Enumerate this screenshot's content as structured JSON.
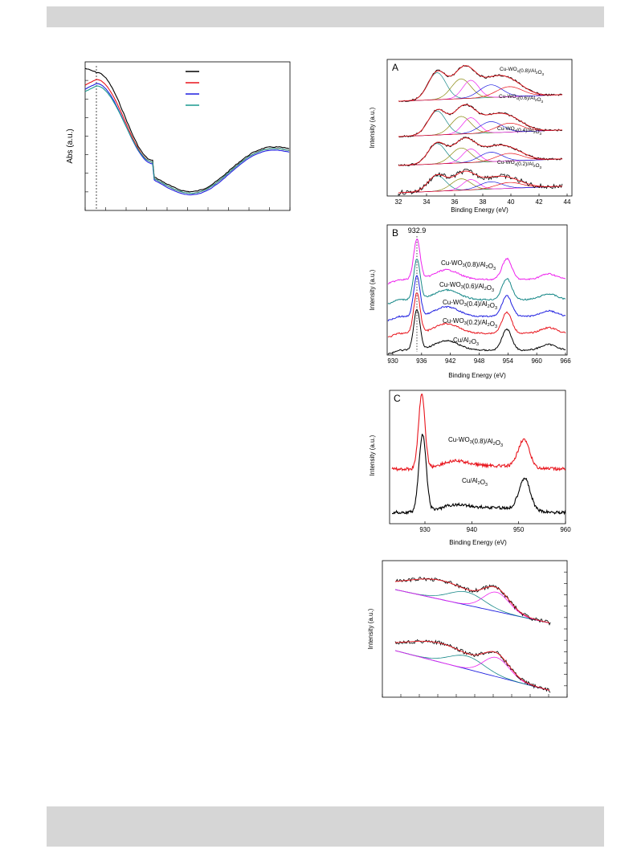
{
  "uv_vis": {
    "ylabel": "Abs (a.u.)"
  },
  "panel_a": {
    "letter": "A",
    "xlabel": "Binding Energy (eV)",
    "ylabel": "Intensity (a.u.)",
    "xticks": [
      "32",
      "34",
      "36",
      "38",
      "40",
      "42",
      "44"
    ],
    "samples": [
      {
        "pre": "Cu-WO",
        "sub1": "x",
        "mid": "(0.8)/Al",
        "sub2": "2",
        "o": "O",
        "sub3": "3"
      },
      {
        "pre": "Cu-WO",
        "sub1": "x",
        "mid": "(0.6)/Al",
        "sub2": "2",
        "o": "O",
        "sub3": "3"
      },
      {
        "pre": "Cu-WO",
        "sub1": "x",
        "mid": "(0.4)/Al",
        "sub2": "2",
        "o": "O",
        "sub3": "3"
      },
      {
        "pre": "Cu-WO",
        "sub1": "x",
        "mid": "(0.2)/Al",
        "sub2": "2",
        "o": "O",
        "sub3": "3"
      }
    ]
  },
  "panel_b": {
    "letter": "B",
    "peak_label": "932.9",
    "xlabel": "Binding Energy (eV)",
    "ylabel": "Intensity (a.u.)",
    "xticks": [
      "930",
      "936",
      "942",
      "948",
      "954",
      "960",
      "966"
    ],
    "samples": [
      {
        "pre": "Cu-WO",
        "sub1": "3",
        "mid": "(0.8)/Al",
        "sub2": "2",
        "o": "O",
        "sub3": "3"
      },
      {
        "pre": "Cu-WO",
        "sub1": "3",
        "mid": "(0.6)/Al",
        "sub2": "2",
        "o": "O",
        "sub3": "3"
      },
      {
        "pre": "Cu-WO",
        "sub1": "3",
        "mid": "(0.4)/Al",
        "sub2": "2",
        "o": "O",
        "sub3": "3"
      },
      {
        "pre": "Cu-WO",
        "sub1": "3",
        "mid": "(0.2)/Al",
        "sub2": "2",
        "o": "O",
        "sub3": "3"
      },
      {
        "pre": "Cu/Al",
        "sub1": "",
        "mid": "",
        "sub2": "2",
        "o": "O",
        "sub3": "3"
      }
    ]
  },
  "panel_c": {
    "letter": "C",
    "xlabel": "Binding Energy (eV)",
    "ylabel": "Intensity (a.u.)",
    "xticks": [
      "930",
      "940",
      "950",
      "960"
    ],
    "samples": [
      {
        "pre": "Cu-WO",
        "sub1": "3",
        "mid": "(0.8)/Al",
        "sub2": "2",
        "o": "O",
        "sub3": "3"
      },
      {
        "pre": "Cu/Al",
        "sub1": "",
        "mid": "",
        "sub2": "2",
        "o": "O",
        "sub3": "3"
      }
    ]
  },
  "panel_d": {
    "ylabel": "Intensity (a.u.)"
  },
  "colors": {
    "black": "#000000",
    "red": "#e8141c",
    "blue": "#1f1fe0",
    "teal": "#1a9a8f",
    "magenta": "#ee22ee",
    "dark_cyan": "#178888",
    "olive": "#8a8a10",
    "green": "#1f8f4a"
  }
}
